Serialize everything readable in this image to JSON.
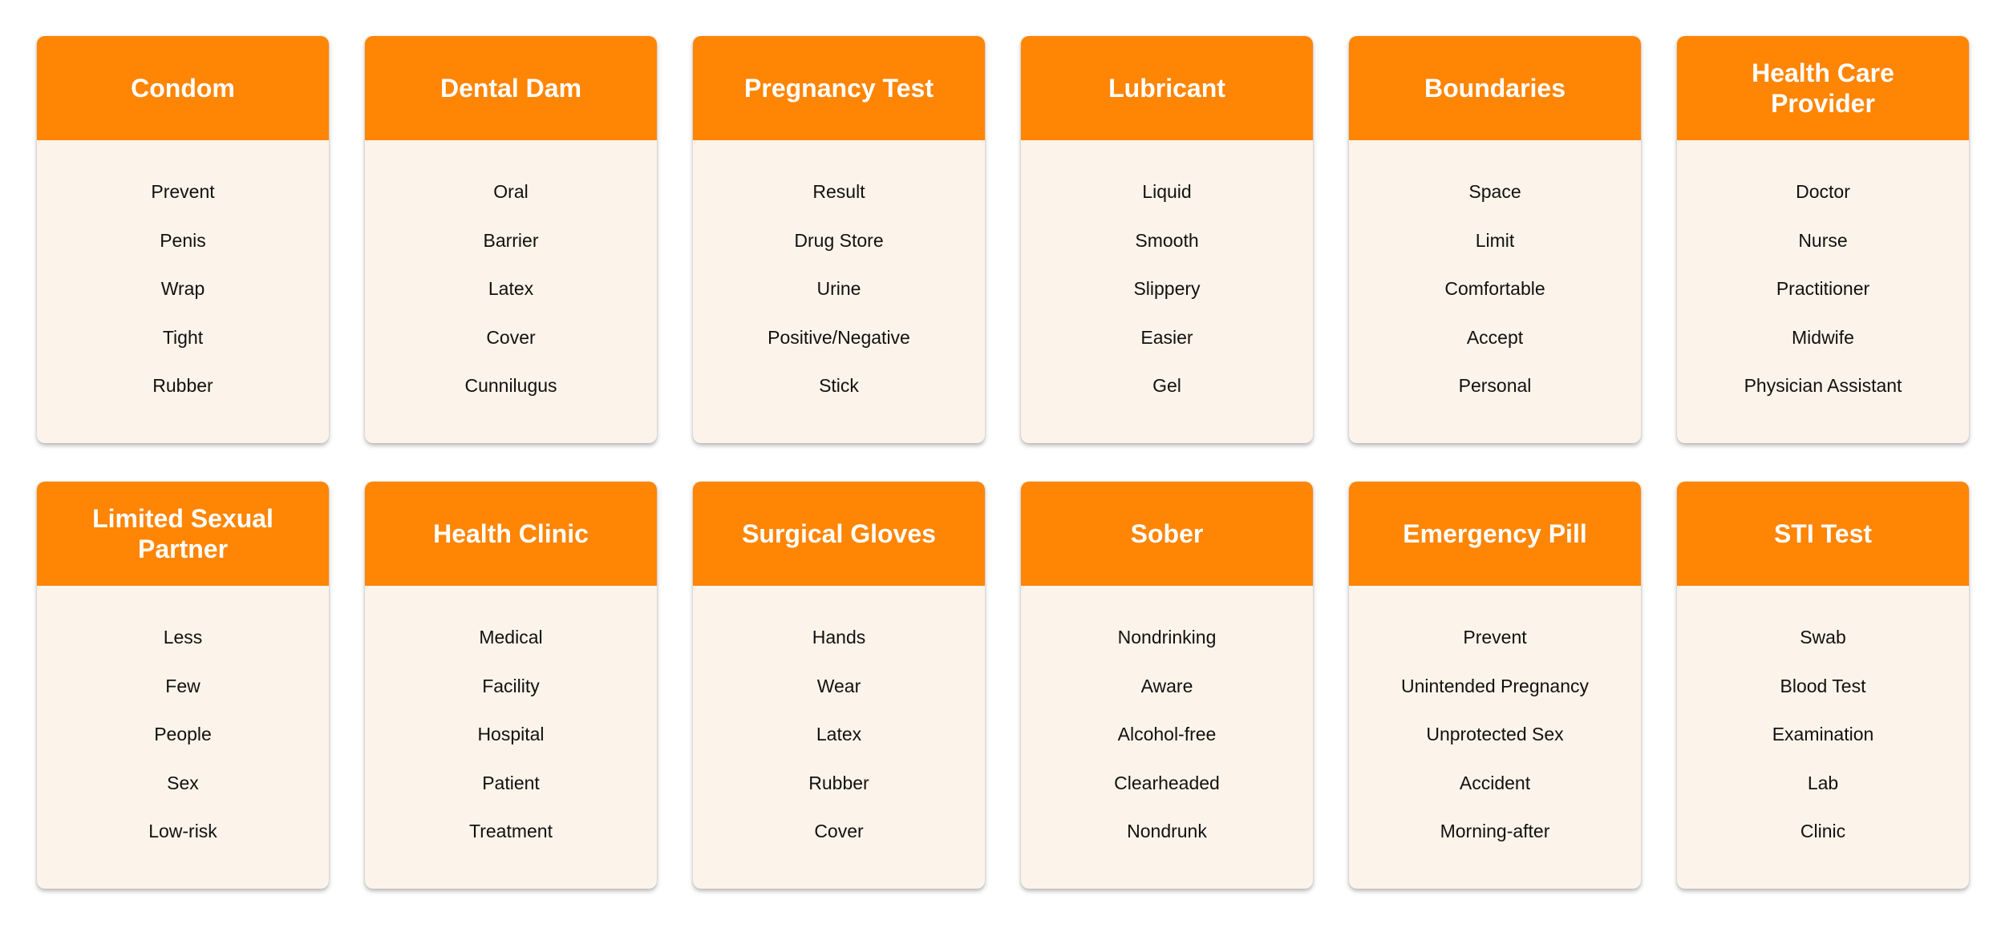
{
  "colors": {
    "header": "#ff8505",
    "card_body": "#fcf4ea",
    "header_text": "#ffffff",
    "body_text": "#111111"
  },
  "cards": [
    {
      "title": "Condom",
      "words": [
        "Prevent",
        "Penis",
        "Wrap",
        "Tight",
        "Rubber"
      ]
    },
    {
      "title": "Dental Dam",
      "words": [
        "Oral",
        "Barrier",
        "Latex",
        "Cover",
        "Cunnilugus"
      ]
    },
    {
      "title": "Pregnancy Test",
      "words": [
        "Result",
        "Drug Store",
        "Urine",
        "Positive/Negative",
        "Stick"
      ]
    },
    {
      "title": "Lubricant",
      "words": [
        "Liquid",
        "Smooth",
        "Slippery",
        "Easier",
        "Gel"
      ]
    },
    {
      "title": "Boundaries",
      "words": [
        "Space",
        "Limit",
        "Comfortable",
        "Accept",
        "Personal"
      ]
    },
    {
      "title": "Health Care Provider",
      "words": [
        "Doctor",
        "Nurse",
        "Practitioner",
        "Midwife",
        "Physician Assistant"
      ]
    },
    {
      "title": "Limited Sexual Partner",
      "words": [
        "Less",
        "Few",
        "People",
        "Sex",
        "Low-risk"
      ]
    },
    {
      "title": "Health Clinic",
      "words": [
        "Medical",
        "Facility",
        "Hospital",
        "Patient",
        "Treatment"
      ]
    },
    {
      "title": "Surgical Gloves",
      "words": [
        "Hands",
        "Wear",
        "Latex",
        "Rubber",
        "Cover"
      ]
    },
    {
      "title": "Sober",
      "words": [
        "Nondrinking",
        "Aware",
        "Alcohol-free",
        "Clearheaded",
        "Nondrunk"
      ]
    },
    {
      "title": "Emergency Pill",
      "words": [
        "Prevent",
        "Unintended Pregnancy",
        "Unprotected Sex",
        "Accident",
        "Morning-after"
      ]
    },
    {
      "title": "STI Test",
      "words": [
        "Swab",
        "Blood Test",
        "Examination",
        "Lab",
        "Clinic"
      ]
    }
  ]
}
